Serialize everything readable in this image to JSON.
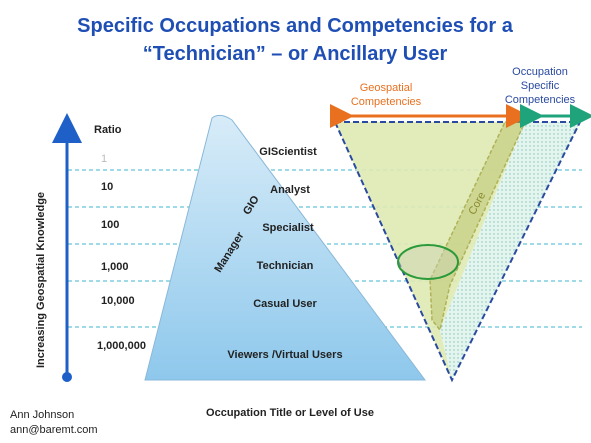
{
  "title": {
    "line1": "Specific Occupations and Competencies for a",
    "line2": "“Technician” – or Ancillary User"
  },
  "left_axis_label": "Increasing Geospatial Knowledge",
  "bottom_axis_label": "Occupation Title or Level of Use",
  "ratio_header": "Ratio",
  "ratios": [
    "1",
    "10",
    "100",
    "1,000",
    "10,000",
    "1,000,000"
  ],
  "pyramid": {
    "levels": [
      "GIScientist",
      "Analyst",
      "Specialist",
      "Technician",
      "Casual User",
      "Viewers /Virtual Users"
    ],
    "gio": "GIO",
    "manager": "Manager"
  },
  "competencies": {
    "geospatial": [
      "Geospatial",
      "Competencies"
    ],
    "occupation": [
      "Occupation",
      "Specific",
      "Competencies"
    ],
    "core": "Core"
  },
  "footer": {
    "name": "Ann Johnson",
    "email": "ann@baremt.com"
  }
}
